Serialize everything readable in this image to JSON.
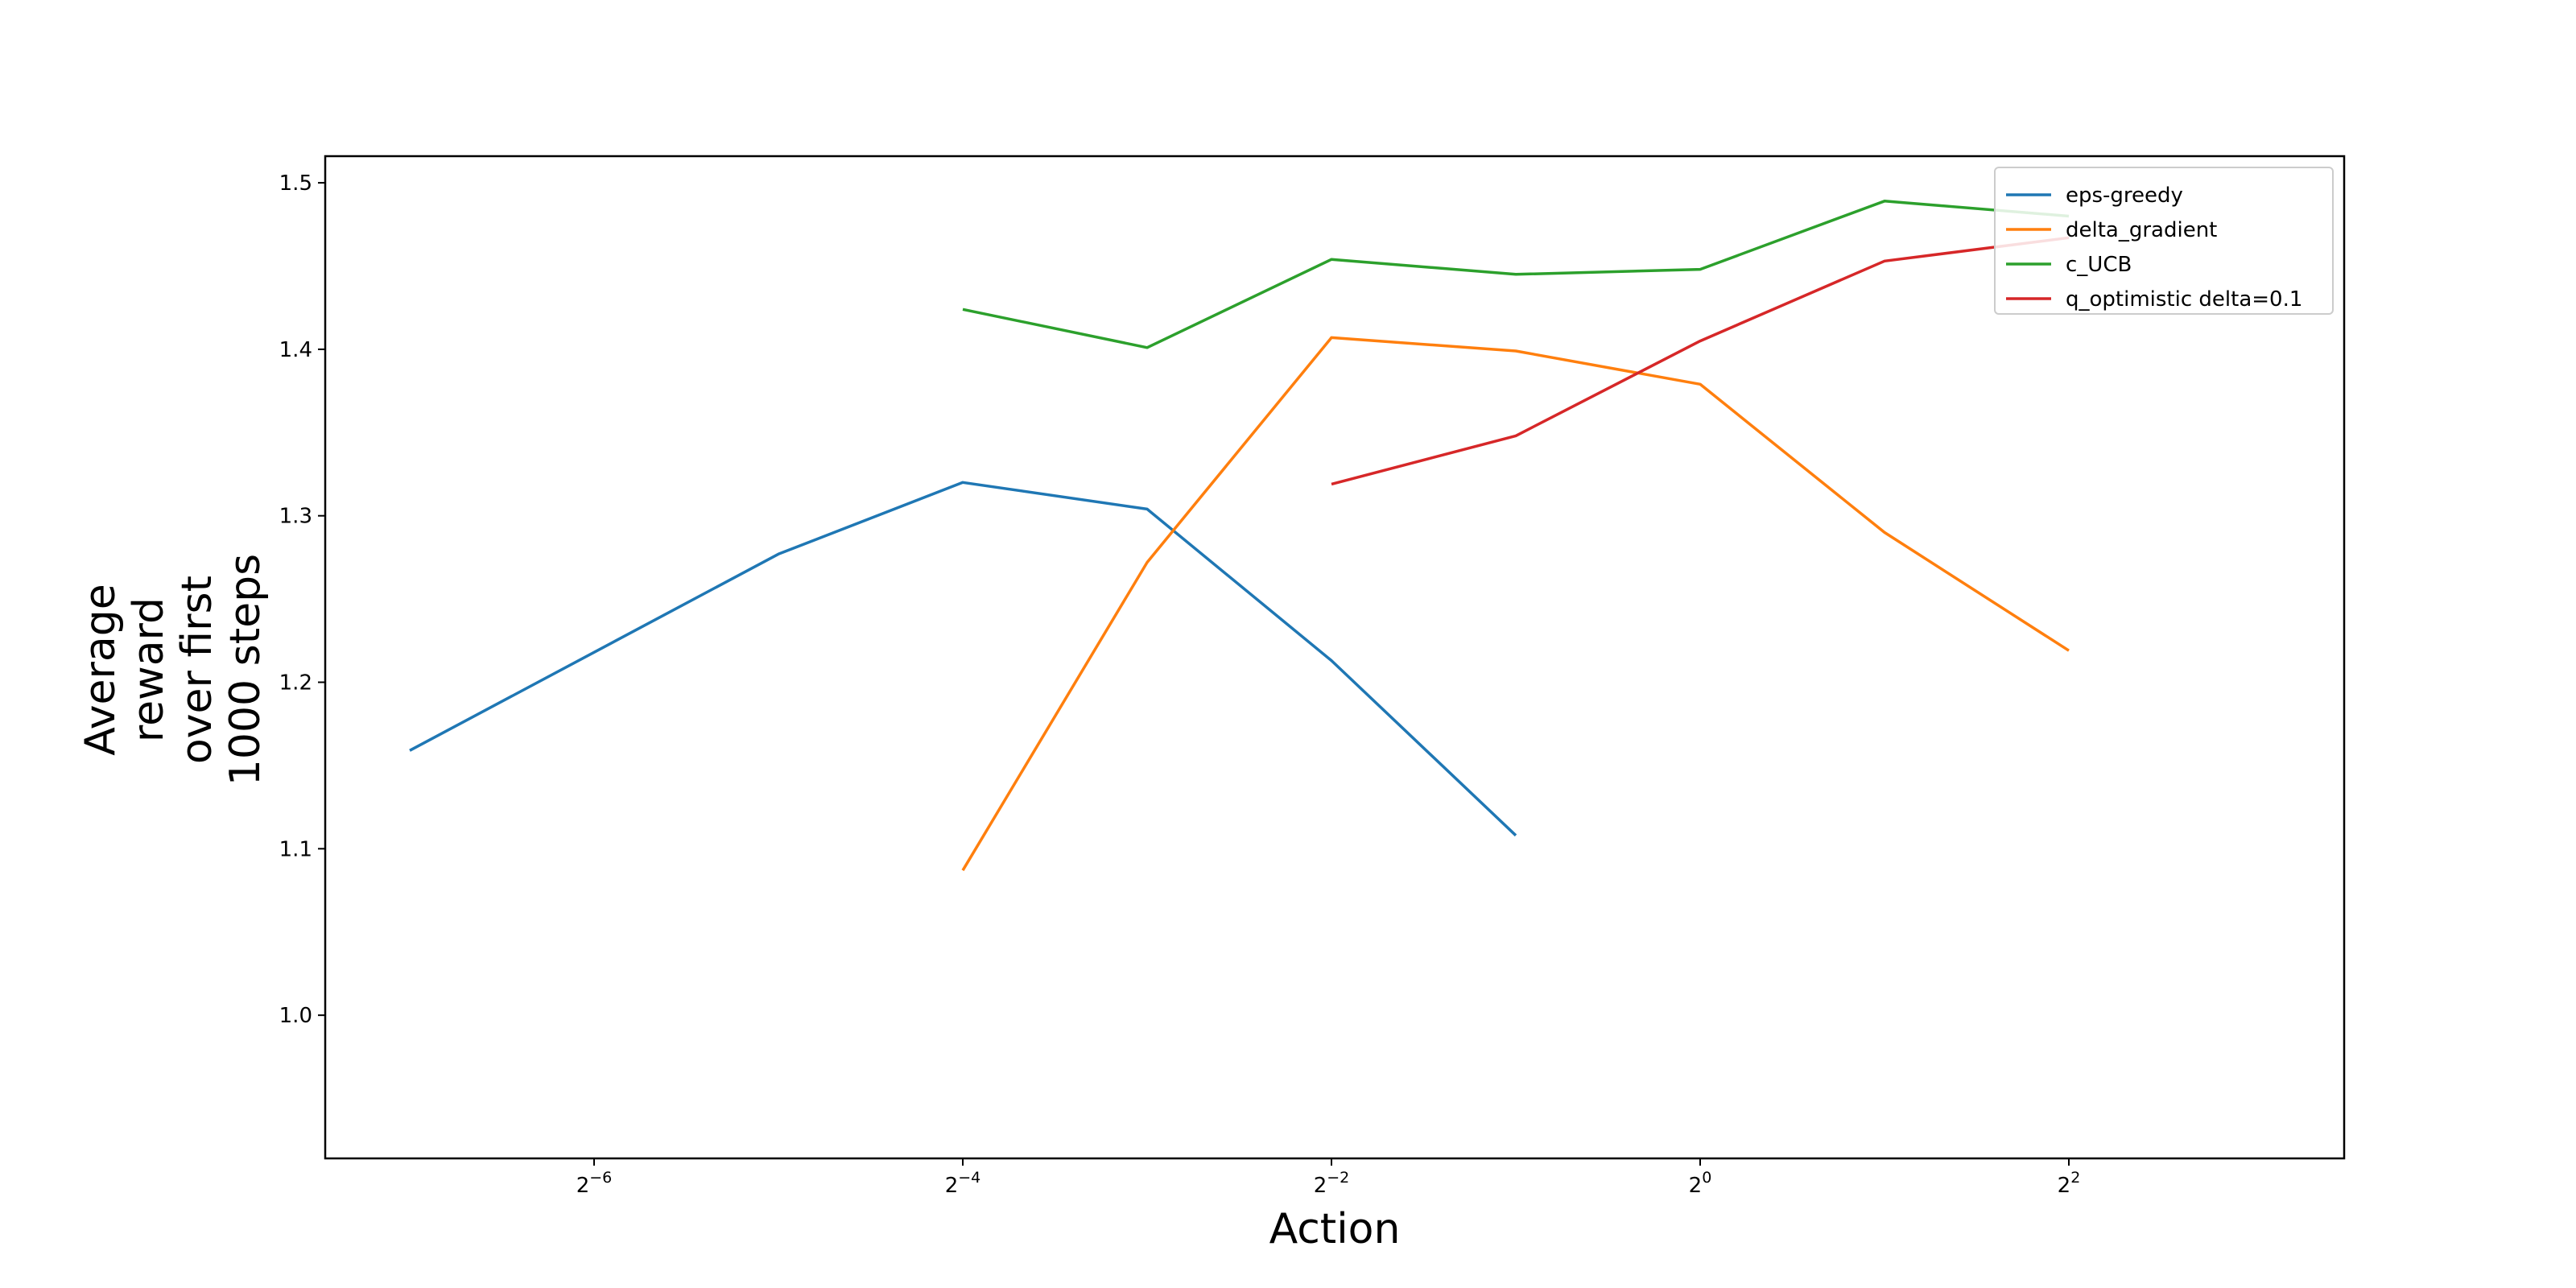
{
  "chart_data": {
    "type": "line",
    "title": "",
    "xlabel": "Action",
    "ylabel_lines": [
      "Average",
      "reward",
      "over first",
      "1000 steps"
    ],
    "x_scale": "log2",
    "xlim": [
      0.0078125,
      14.0
    ],
    "ylim": [
      0.914,
      1.516
    ],
    "xticks": [
      {
        "value": 0.015625,
        "base": "2",
        "exp": "−6"
      },
      {
        "value": 0.0625,
        "base": "2",
        "exp": "−4"
      },
      {
        "value": 0.25,
        "base": "2",
        "exp": "−2"
      },
      {
        "value": 1,
        "base": "2",
        "exp": "0"
      },
      {
        "value": 4,
        "base": "2",
        "exp": "2"
      }
    ],
    "yticks": [
      "1.0",
      "1.1",
      "1.2",
      "1.3",
      "1.4",
      "1.5"
    ],
    "grid": false,
    "legend_position": "top-right",
    "series": [
      {
        "name": "eps-greedy",
        "color": "#1f77b4",
        "x": [
          0.0078125,
          0.03125,
          0.0625,
          0.125,
          0.25,
          0.5
        ],
        "y": [
          1.159,
          1.277,
          1.32,
          1.304,
          1.213,
          1.108
        ]
      },
      {
        "name": "delta_gradient",
        "color": "#ff7f0e",
        "x": [
          0.0625,
          0.125,
          0.25,
          0.5,
          1,
          2,
          4
        ],
        "y": [
          1.087,
          1.272,
          1.407,
          1.399,
          1.379,
          1.29,
          1.219
        ]
      },
      {
        "name": "c_UCB",
        "color": "#2ca02c",
        "x": [
          0.0625,
          0.125,
          0.25,
          0.5,
          1,
          2,
          4
        ],
        "y": [
          1.424,
          1.401,
          1.454,
          1.445,
          1.448,
          1.489,
          1.48
        ]
      },
      {
        "name": "q_optimistic delta=0.1",
        "color": "#d62728",
        "x": [
          0.25,
          0.5,
          1,
          2,
          4
        ],
        "y": [
          1.319,
          1.348,
          1.405,
          1.453,
          1.467
        ]
      }
    ]
  }
}
